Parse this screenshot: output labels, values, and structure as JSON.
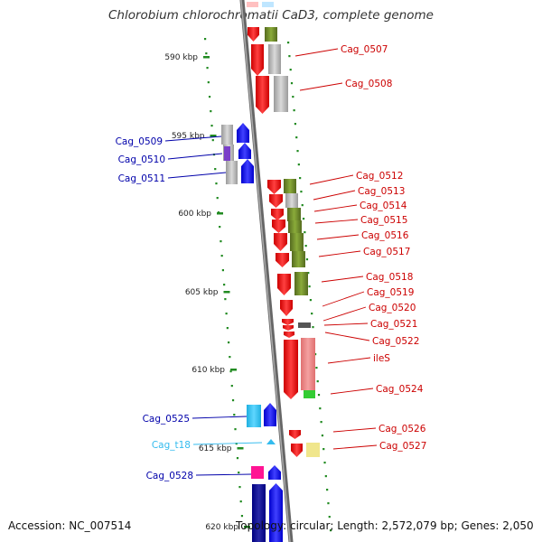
{
  "title": "Chlorobium chlorochromatii CaD3, complete genome",
  "footer": {
    "accession": "Accession: NC_007514",
    "summary": "Topology: circular; Length: 2,572,079 bp; Genes: 2,050"
  },
  "scale_labels": [
    "590 kbp",
    "595 kbp",
    "600 kbp",
    "605 kbp",
    "610 kbp",
    "615 kbp",
    "620 kbp"
  ],
  "left_labels": [
    {
      "text": "Cag_0509",
      "color": "#0000aa"
    },
    {
      "text": "Cag_0510",
      "color": "#0000aa"
    },
    {
      "text": "Cag_0511",
      "color": "#0000aa"
    },
    {
      "text": "Cag_0525",
      "color": "#0000aa"
    },
    {
      "text": "Cag_t18",
      "color": "#33bbee"
    },
    {
      "text": "Cag_0528",
      "color": "#0000aa"
    }
  ],
  "right_labels": [
    {
      "text": "Cag_0507",
      "color": "#cc0000"
    },
    {
      "text": "Cag_0508",
      "color": "#cc0000"
    },
    {
      "text": "Cag_0512",
      "color": "#cc0000"
    },
    {
      "text": "Cag_0513",
      "color": "#cc0000"
    },
    {
      "text": "Cag_0514",
      "color": "#cc0000"
    },
    {
      "text": "Cag_0515",
      "color": "#cc0000"
    },
    {
      "text": "Cag_0516",
      "color": "#cc0000"
    },
    {
      "text": "Cag_0517",
      "color": "#cc0000"
    },
    {
      "text": "Cag_0518",
      "color": "#cc0000"
    },
    {
      "text": "Cag_0519",
      "color": "#cc0000"
    },
    {
      "text": "Cag_0520",
      "color": "#cc0000"
    },
    {
      "text": "Cag_0521",
      "color": "#cc0000"
    },
    {
      "text": "Cag_0522",
      "color": "#cc0000"
    },
    {
      "text": "ileS",
      "color": "#cc0000"
    },
    {
      "text": "Cag_0524",
      "color": "#cc0000"
    },
    {
      "text": "Cag_0526",
      "color": "#cc0000"
    },
    {
      "text": "Cag_0527",
      "color": "#cc0000"
    }
  ],
  "colors": {
    "forward": "#ff0000",
    "reverse": "#0000ff",
    "backbone": "#888888",
    "tick": "#228b22",
    "cog_olive": "#6b8e23",
    "cog_gray": "#b8b8b8",
    "cog_pink": "#f08080"
  }
}
